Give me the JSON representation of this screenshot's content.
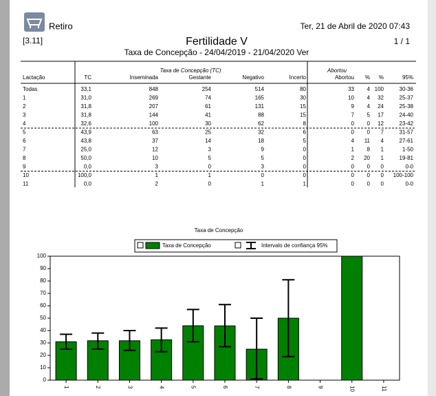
{
  "header": {
    "app": "Retiro",
    "datetime": "Ter, 21 de Abril de 2020  07:43",
    "code": "[3.11]",
    "title": "Fertilidade V",
    "subtitle": "Taxa de Concepção  -  24/04/2019 - 21/04/2020 Ver",
    "page": "1 / 1"
  },
  "table": {
    "group_tc": "Taxa de Concepção (TC)",
    "group_abortou": "Abortou",
    "columns": [
      "Lactação",
      "TC",
      "Inseminada",
      "Gestante",
      "Negativo",
      "Incerto",
      "Abortou",
      "%",
      "%",
      "95%"
    ],
    "rows": [
      [
        "Todas",
        "33,1",
        "848",
        "254",
        "514",
        "80",
        "33",
        "4",
        "100",
        "30-36"
      ],
      [
        "1",
        "31,0",
        "269",
        "74",
        "165",
        "30",
        "10",
        "4",
        "32",
        "25-37"
      ],
      [
        "2",
        "31,8",
        "207",
        "61",
        "131",
        "15",
        "9",
        "4",
        "24",
        "25-38"
      ],
      [
        "3",
        "31,8",
        "144",
        "41",
        "88",
        "15",
        "7",
        "5",
        "17",
        "24-40"
      ],
      [
        "4",
        "32,6",
        "100",
        "30",
        "62",
        "8",
        "0",
        "0",
        "12",
        "23-42"
      ],
      [
        "5",
        "43,9",
        "63",
        "25",
        "32",
        "6",
        "0",
        "0",
        "7",
        "31-57"
      ],
      [
        "6",
        "43,8",
        "37",
        "14",
        "18",
        "5",
        "4",
        "11",
        "4",
        "27-61"
      ],
      [
        "7",
        "25,0",
        "12",
        "3",
        "9",
        "0",
        "1",
        "8",
        "1",
        "1-50"
      ],
      [
        "8",
        "50,0",
        "10",
        "5",
        "5",
        "0",
        "2",
        "20",
        "1",
        "19-81"
      ],
      [
        "9",
        "0,0",
        "3",
        "0",
        "3",
        "0",
        "0",
        "0",
        "0",
        "0-0"
      ],
      [
        "10",
        "100,0",
        "1",
        "1",
        "0",
        "0",
        "0",
        "0",
        "0",
        "100-100"
      ],
      [
        "11",
        "0,0",
        "2",
        "0",
        "1",
        "1",
        "0",
        "0",
        "0",
        "0-0"
      ]
    ]
  },
  "chart_data": {
    "type": "bar",
    "title": "Taxa de Concepção",
    "bar_name": "Taxa de Concepção",
    "error_name": "Intervalo de confiança 95%",
    "categories": [
      "1",
      "2",
      "3",
      "4",
      "5",
      "6",
      "7",
      "8",
      "9",
      "10",
      "11"
    ],
    "values": [
      31.0,
      31.8,
      31.8,
      32.6,
      43.9,
      43.8,
      25.0,
      50.0,
      0,
      100,
      0
    ],
    "lower": [
      25,
      25,
      24,
      23,
      31,
      27,
      1,
      19,
      null,
      null,
      null
    ],
    "upper": [
      37,
      38,
      40,
      42,
      57,
      61,
      50,
      81,
      null,
      null,
      null
    ],
    "color": "#008000",
    "ylim": [
      0,
      100
    ],
    "yticks": [
      0,
      10,
      20,
      30,
      40,
      50,
      60,
      70,
      80,
      90,
      100
    ]
  }
}
